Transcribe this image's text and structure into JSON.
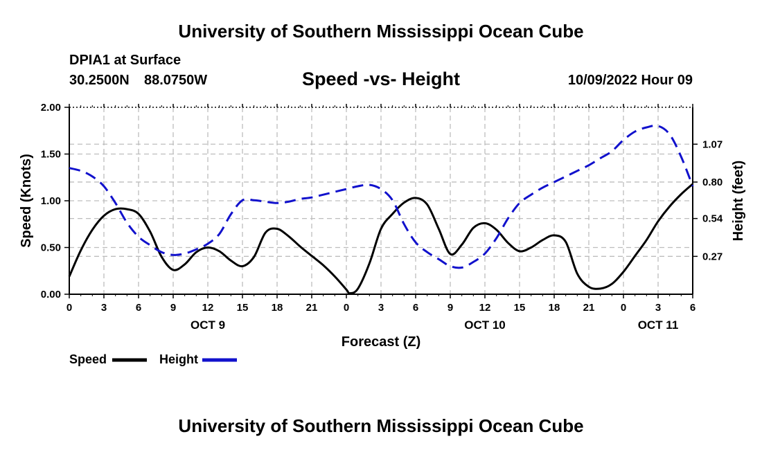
{
  "header": {
    "title": "University of Southern Mississippi Ocean Cube",
    "station": "DPIA1 at Surface",
    "lat": "30.2500N",
    "lon": "88.0750W",
    "chart_title": "Speed -vs- Height",
    "date": "10/09/2022 Hour 09"
  },
  "footer": {
    "title": "University of Southern Mississippi Ocean Cube"
  },
  "chart_data": {
    "type": "line",
    "title": "Speed -vs- Height",
    "xlabel": "Forecast (Z)",
    "ylabel": "Speed (Knots)",
    "y2label": "Height (feet)",
    "x_range_hours": [
      0,
      54
    ],
    "x_ticks": [
      {
        "h": 0,
        "label": "0"
      },
      {
        "h": 3,
        "label": "3"
      },
      {
        "h": 6,
        "label": "6"
      },
      {
        "h": 9,
        "label": "9"
      },
      {
        "h": 12,
        "label": "12"
      },
      {
        "h": 15,
        "label": "15"
      },
      {
        "h": 18,
        "label": "18"
      },
      {
        "h": 21,
        "label": "21"
      },
      {
        "h": 24,
        "label": "0"
      },
      {
        "h": 27,
        "label": "3"
      },
      {
        "h": 30,
        "label": "6"
      },
      {
        "h": 33,
        "label": "9"
      },
      {
        "h": 36,
        "label": "12"
      },
      {
        "h": 39,
        "label": "15"
      },
      {
        "h": 42,
        "label": "18"
      },
      {
        "h": 45,
        "label": "21"
      },
      {
        "h": 48,
        "label": "0"
      },
      {
        "h": 51,
        "label": "3"
      },
      {
        "h": 54,
        "label": "6"
      }
    ],
    "day_labels": [
      {
        "h": 12,
        "label": "OCT 9"
      },
      {
        "h": 36,
        "label": "OCT 10"
      },
      {
        "h": 51,
        "label": "OCT 11"
      }
    ],
    "y_range": [
      0,
      2.0
    ],
    "y_ticks": [
      "0.00",
      "0.50",
      "1.00",
      "1.50",
      "2.00"
    ],
    "y2_range": [
      0.0,
      1.333
    ],
    "y2_ticks": [
      "0.27",
      "0.54",
      "0.80",
      "1.07"
    ],
    "grid": true,
    "legend": {
      "position": "bottom-left",
      "items": [
        "Speed",
        "Height"
      ]
    },
    "series": [
      {
        "name": "Speed",
        "unit": "Knots",
        "axis": "left",
        "color": "#000000",
        "dash": "solid",
        "points": [
          [
            0,
            0.19
          ],
          [
            1,
            0.47
          ],
          [
            2,
            0.69
          ],
          [
            3,
            0.84
          ],
          [
            4,
            0.91
          ],
          [
            5,
            0.91
          ],
          [
            6,
            0.86
          ],
          [
            7,
            0.67
          ],
          [
            8,
            0.4
          ],
          [
            9,
            0.26
          ],
          [
            10,
            0.32
          ],
          [
            11,
            0.45
          ],
          [
            12,
            0.5
          ],
          [
            13,
            0.46
          ],
          [
            14,
            0.36
          ],
          [
            15,
            0.3
          ],
          [
            16,
            0.4
          ],
          [
            17,
            0.66
          ],
          [
            18,
            0.7
          ],
          [
            19,
            0.62
          ],
          [
            20,
            0.51
          ],
          [
            21,
            0.41
          ],
          [
            22,
            0.31
          ],
          [
            23,
            0.19
          ],
          [
            24,
            0.05
          ],
          [
            24.3,
            0.01
          ],
          [
            25,
            0.06
          ],
          [
            26,
            0.33
          ],
          [
            27,
            0.7
          ],
          [
            28,
            0.86
          ],
          [
            29,
            0.98
          ],
          [
            30,
            1.03
          ],
          [
            31,
            0.96
          ],
          [
            32,
            0.7
          ],
          [
            33,
            0.43
          ],
          [
            34,
            0.53
          ],
          [
            35,
            0.71
          ],
          [
            36,
            0.76
          ],
          [
            37,
            0.69
          ],
          [
            38,
            0.55
          ],
          [
            39,
            0.46
          ],
          [
            40,
            0.5
          ],
          [
            41,
            0.58
          ],
          [
            42,
            0.63
          ],
          [
            43,
            0.56
          ],
          [
            44,
            0.22
          ],
          [
            45,
            0.08
          ],
          [
            46,
            0.06
          ],
          [
            47,
            0.11
          ],
          [
            48,
            0.24
          ],
          [
            49,
            0.41
          ],
          [
            50,
            0.58
          ],
          [
            51,
            0.78
          ],
          [
            52,
            0.94
          ],
          [
            53,
            1.07
          ],
          [
            54,
            1.18
          ]
        ]
      },
      {
        "name": "Height",
        "unit": "feet",
        "axis": "right",
        "color": "#1111cc",
        "dash": "dashed",
        "points": [
          [
            0,
            0.9
          ],
          [
            1,
            0.88
          ],
          [
            2,
            0.84
          ],
          [
            3,
            0.77
          ],
          [
            4,
            0.65
          ],
          [
            5,
            0.51
          ],
          [
            6,
            0.41
          ],
          [
            7,
            0.35
          ],
          [
            8,
            0.3
          ],
          [
            9,
            0.28
          ],
          [
            10,
            0.29
          ],
          [
            11,
            0.32
          ],
          [
            12,
            0.36
          ],
          [
            13,
            0.43
          ],
          [
            14,
            0.57
          ],
          [
            15,
            0.67
          ],
          [
            16,
            0.67
          ],
          [
            17,
            0.66
          ],
          [
            18,
            0.65
          ],
          [
            19,
            0.66
          ],
          [
            20,
            0.68
          ],
          [
            21,
            0.69
          ],
          [
            22,
            0.71
          ],
          [
            23,
            0.73
          ],
          [
            24,
            0.75
          ],
          [
            25,
            0.77
          ],
          [
            26,
            0.78
          ],
          [
            27,
            0.75
          ],
          [
            28,
            0.67
          ],
          [
            29,
            0.5
          ],
          [
            30,
            0.37
          ],
          [
            31,
            0.3
          ],
          [
            32,
            0.25
          ],
          [
            33,
            0.2
          ],
          [
            34,
            0.19
          ],
          [
            35,
            0.23
          ],
          [
            36,
            0.29
          ],
          [
            37,
            0.4
          ],
          [
            38,
            0.54
          ],
          [
            39,
            0.65
          ],
          [
            40,
            0.71
          ],
          [
            41,
            0.76
          ],
          [
            42,
            0.8
          ],
          [
            43,
            0.84
          ],
          [
            44,
            0.88
          ],
          [
            45,
            0.92
          ],
          [
            46,
            0.97
          ],
          [
            47,
            1.02
          ],
          [
            48,
            1.1
          ],
          [
            49,
            1.16
          ],
          [
            50,
            1.19
          ],
          [
            51,
            1.2
          ],
          [
            52,
            1.14
          ],
          [
            53,
            0.98
          ],
          [
            54,
            0.77
          ]
        ]
      }
    ]
  }
}
